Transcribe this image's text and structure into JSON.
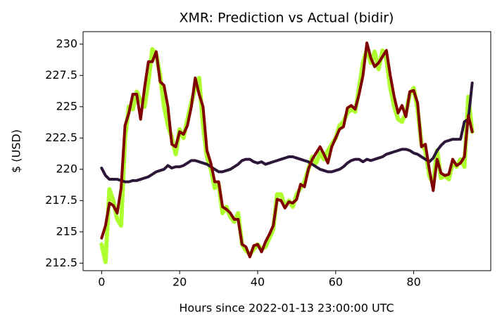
{
  "chart_data": {
    "type": "line",
    "title": "XMR: Prediction vs Actual (bidir)",
    "xlabel": "Hours since 2022-01-13 23:00:00 UTC",
    "ylabel": "$ (USD)",
    "x": [
      0,
      1,
      2,
      3,
      4,
      5,
      6,
      7,
      8,
      9,
      10,
      11,
      12,
      13,
      14,
      15,
      16,
      17,
      18,
      19,
      20,
      21,
      22,
      23,
      24,
      25,
      26,
      27,
      28,
      29,
      30,
      31,
      32,
      33,
      34,
      35,
      36,
      37,
      38,
      39,
      40,
      41,
      42,
      43,
      44,
      45,
      46,
      47,
      48,
      49,
      50,
      51,
      52,
      53,
      54,
      55,
      56,
      57,
      58,
      59,
      60,
      61,
      62,
      63,
      64,
      65,
      66,
      67,
      68,
      69,
      70,
      71,
      72,
      73,
      74,
      75,
      76,
      77,
      78,
      79,
      80,
      81,
      82,
      83,
      84,
      85,
      86,
      87,
      88,
      89,
      90,
      91,
      92,
      93,
      94,
      95
    ],
    "xlim": [
      -4.75,
      99.75
    ],
    "xticks": [
      0,
      20,
      40,
      60,
      80
    ],
    "ylim": [
      211.9,
      231.0
    ],
    "yticks": [
      212.5,
      215,
      217.5,
      220,
      222.5,
      225,
      227.5,
      230
    ],
    "series": [
      {
        "color": "#adff2f",
        "width": 6,
        "values": [
          214,
          212.6,
          218.4,
          217.5,
          216,
          215.5,
          222.5,
          225,
          224.8,
          226.2,
          225.5,
          225,
          227,
          229.6,
          229.2,
          227.5,
          225,
          223.5,
          222.5,
          221.2,
          223.2,
          222.5,
          224,
          225.3,
          226.5,
          227.3,
          223.5,
          221,
          220,
          218.5,
          218.8,
          216.5,
          217,
          216.2,
          215.8,
          216.5,
          214,
          213.5,
          213.2,
          213.6,
          214,
          213.6,
          213.8,
          214.5,
          215.2,
          218,
          218,
          217,
          217.5,
          217,
          218,
          218.5,
          219,
          220,
          221,
          220.5,
          221.3,
          220.8,
          221.5,
          222,
          222.5,
          223.5,
          223.8,
          224.5,
          224.8,
          224.6,
          226.5,
          228.5,
          229.6,
          228.5,
          229.4,
          228,
          229.5,
          228.8,
          226.5,
          225,
          224,
          223.8,
          224.5,
          226,
          226.5,
          224.8,
          222,
          221.5,
          219.5,
          218.8,
          221.5,
          219.3,
          219.5,
          219.2,
          220.5,
          220.2,
          220.8,
          220.2,
          225.8,
          223
        ]
      },
      {
        "color": "#2d1738",
        "width": 4,
        "values": [
          220.1,
          219.5,
          219.2,
          219.2,
          219.2,
          219.1,
          219.0,
          219.0,
          219.1,
          219.1,
          219.2,
          219.3,
          219.4,
          219.6,
          219.8,
          219.9,
          220.0,
          220.3,
          220.1,
          220.2,
          220.2,
          220.3,
          220.5,
          220.7,
          220.7,
          220.6,
          220.5,
          220.4,
          220.2,
          220.0,
          219.8,
          219.8,
          219.9,
          220.0,
          220.2,
          220.4,
          220.7,
          220.8,
          220.8,
          220.6,
          220.5,
          220.6,
          220.4,
          220.5,
          220.6,
          220.7,
          220.8,
          220.9,
          221.0,
          221.0,
          220.9,
          220.8,
          220.7,
          220.6,
          220.4,
          220.2,
          220.0,
          219.9,
          219.8,
          219.8,
          219.9,
          220.0,
          220.2,
          220.5,
          220.7,
          220.8,
          220.8,
          220.6,
          220.8,
          220.7,
          220.8,
          220.9,
          221.0,
          221.2,
          221.3,
          221.4,
          221.5,
          221.6,
          221.6,
          221.5,
          221.3,
          221.2,
          221.0,
          220.8,
          220.6,
          220.9,
          221.5,
          221.9,
          222.2,
          222.3,
          222.4,
          222.4,
          222.4,
          223.8,
          224.0,
          226.9
        ]
      },
      {
        "color": "#800000",
        "width": 4,
        "values": [
          214.5,
          215.5,
          217.3,
          217.1,
          216.5,
          218.5,
          223.5,
          224.5,
          226,
          226,
          224,
          226.5,
          228.6,
          228.6,
          229.4,
          227,
          226.7,
          225,
          222,
          221.8,
          223,
          222.8,
          223.5,
          225,
          227.3,
          226,
          225,
          221.5,
          220.5,
          219,
          219,
          217,
          216.8,
          216.5,
          216,
          216,
          214,
          213.8,
          213,
          213.9,
          214,
          213.4,
          214.2,
          214.8,
          215.5,
          217.6,
          217.5,
          216.9,
          217.4,
          217.3,
          217.6,
          218.8,
          218.6,
          220,
          220.8,
          221.3,
          221.8,
          221.2,
          220.5,
          221.8,
          222.5,
          223.2,
          223.4,
          224.9,
          225.1,
          224.8,
          226,
          227.5,
          230.1,
          228.9,
          228.2,
          228.5,
          229,
          229.5,
          227.5,
          225.8,
          224.5,
          225.1,
          224.2,
          226.2,
          226.3,
          225.3,
          221.8,
          222,
          220,
          218.3,
          220.8,
          219.7,
          219.5,
          219.6,
          220.8,
          220.3,
          220.5,
          221,
          224.3,
          223
        ]
      }
    ]
  }
}
